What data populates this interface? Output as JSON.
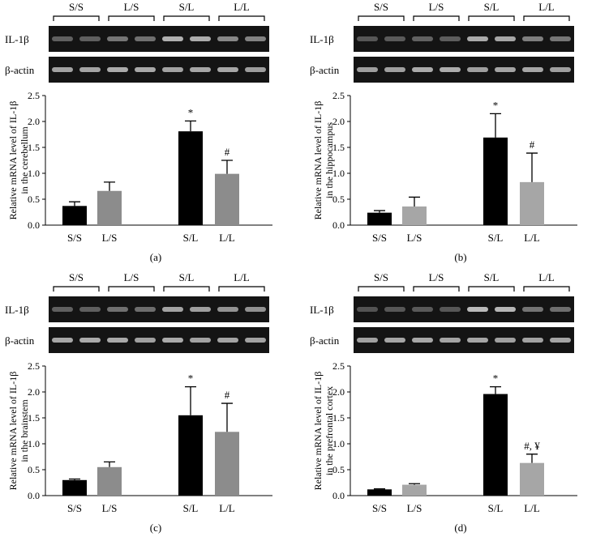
{
  "panels": [
    {
      "id": "a",
      "caption": "(a)",
      "group_labels": [
        "S/S",
        "L/S",
        "S/L",
        "L/L"
      ],
      "gel_rows": [
        "IL-1β",
        "β-actin"
      ],
      "chart_data": {
        "type": "bar",
        "categories": [
          "S/S",
          "L/S",
          "S/L",
          "L/L"
        ],
        "values": [
          0.37,
          0.66,
          1.81,
          0.99
        ],
        "errors": [
          0.08,
          0.17,
          0.2,
          0.26
        ],
        "annotations": [
          "",
          "",
          "*",
          "#"
        ],
        "bar_colors": [
          "#000000",
          "#8c8c8c",
          "#000000",
          "#8c8c8c"
        ],
        "ylabel_lines": [
          "Relative mRNA level of IL-1β",
          "in the cerebellum"
        ],
        "ylim": [
          0,
          2.5
        ],
        "yticks": [
          "0.0",
          "0.5",
          "1.0",
          "1.5",
          "2.0",
          "2.5"
        ],
        "xlabel": "",
        "title": ""
      }
    },
    {
      "id": "b",
      "caption": "(b)",
      "group_labels": [
        "S/S",
        "L/S",
        "S/L",
        "L/L"
      ],
      "gel_rows": [
        "IL-1β",
        "β-actin"
      ],
      "chart_data": {
        "type": "bar",
        "categories": [
          "S/S",
          "L/S",
          "S/L",
          "L/L"
        ],
        "values": [
          0.24,
          0.36,
          1.69,
          0.83
        ],
        "errors": [
          0.04,
          0.18,
          0.46,
          0.56
        ],
        "annotations": [
          "",
          "",
          "*",
          "#"
        ],
        "bar_colors": [
          "#000000",
          "#a6a6a6",
          "#000000",
          "#a6a6a6"
        ],
        "ylabel_lines": [
          "Relative mRNA level of IL-1β",
          "in the hippocampus"
        ],
        "ylim": [
          0,
          2.5
        ],
        "yticks": [
          "0.0",
          "0.5",
          "1.0",
          "1.5",
          "2.0",
          "2.5"
        ],
        "xlabel": "",
        "title": ""
      }
    },
    {
      "id": "c",
      "caption": "(c)",
      "group_labels": [
        "S/S",
        "L/S",
        "S/L",
        "L/L"
      ],
      "gel_rows": [
        "IL-1β",
        "β-actin"
      ],
      "chart_data": {
        "type": "bar",
        "categories": [
          "S/S",
          "L/S",
          "S/L",
          "L/L"
        ],
        "values": [
          0.3,
          0.55,
          1.55,
          1.23
        ],
        "errors": [
          0.02,
          0.1,
          0.55,
          0.55
        ],
        "annotations": [
          "",
          "",
          "*",
          "#"
        ],
        "bar_colors": [
          "#000000",
          "#8c8c8c",
          "#000000",
          "#8c8c8c"
        ],
        "ylabel_lines": [
          "Relative mRNA level of IL-1β",
          "in the brainstem"
        ],
        "ylim": [
          0,
          2.5
        ],
        "yticks": [
          "0.0",
          "0.5",
          "1.0",
          "1.5",
          "2.0",
          "2.5"
        ],
        "xlabel": "",
        "title": ""
      }
    },
    {
      "id": "d",
      "caption": "(d)",
      "group_labels": [
        "S/S",
        "L/S",
        "S/L",
        "L/L"
      ],
      "gel_rows": [
        "IL-1β",
        "β-actin"
      ],
      "chart_data": {
        "type": "bar",
        "categories": [
          "S/S",
          "L/S",
          "S/L",
          "L/L"
        ],
        "values": [
          0.12,
          0.21,
          1.96,
          0.63
        ],
        "errors": [
          0.01,
          0.02,
          0.14,
          0.17
        ],
        "annotations": [
          "",
          "",
          "*",
          "#, ¥"
        ],
        "bar_colors": [
          "#000000",
          "#a6a6a6",
          "#000000",
          "#a6a6a6"
        ],
        "ylabel_lines": [
          "Relative mRNA level of IL-1β",
          "in the prefrontal cortex"
        ],
        "ylim": [
          0,
          2.5
        ],
        "yticks": [
          "0.0",
          "0.5",
          "1.0",
          "1.5",
          "2.0",
          "2.5"
        ],
        "xlabel": "",
        "title": ""
      }
    }
  ]
}
